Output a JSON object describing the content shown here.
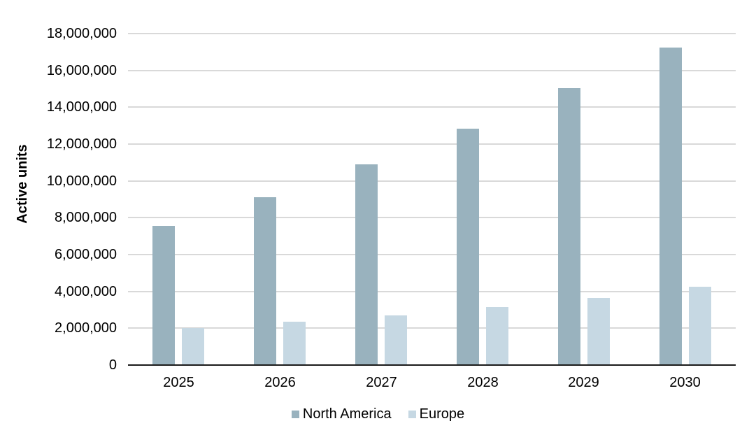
{
  "chart_data": {
    "type": "bar",
    "title": "",
    "xlabel": "",
    "ylabel": "Active units",
    "categories": [
      "2025",
      "2026",
      "2027",
      "2028",
      "2029",
      "2030"
    ],
    "series": [
      {
        "name": "North America",
        "color": "#99b2be",
        "values": [
          7550000,
          9100000,
          10900000,
          12850000,
          15050000,
          17250000
        ]
      },
      {
        "name": "Europe",
        "color": "#c6d8e3",
        "values": [
          2000000,
          2350000,
          2700000,
          3150000,
          3650000,
          4250000
        ]
      }
    ],
    "ylim": [
      0,
      18000000
    ],
    "ytick_step": 2000000,
    "ytick_labels": [
      "0",
      "2,000,000",
      "4,000,000",
      "6,000,000",
      "8,000,000",
      "10,000,000",
      "12,000,000",
      "14,000,000",
      "16,000,000",
      "18,000,000"
    ],
    "grid": true,
    "legend_position": "bottom"
  },
  "colors": {
    "gridline": "#d9d9d9",
    "axis_line": "#1a1a1a",
    "text": "#000000",
    "background": "#ffffff"
  }
}
